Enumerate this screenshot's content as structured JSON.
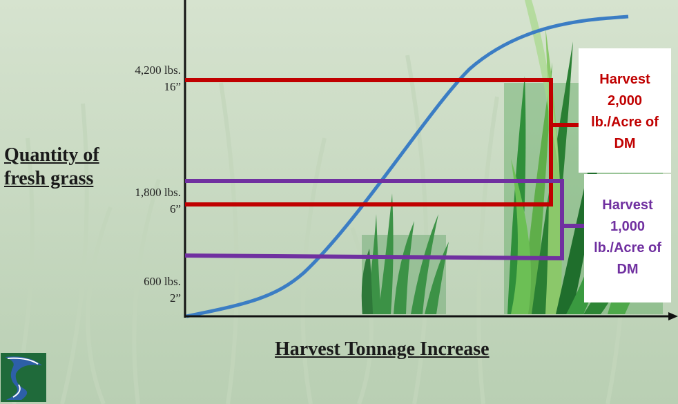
{
  "y_axis_label_lines": [
    "Quantity of",
    "fresh grass"
  ],
  "x_axis_label": "Harvest Tonnage Increase",
  "y_ticks": [
    {
      "amount": "4,200 lbs.",
      "height": "16”"
    },
    {
      "amount": "1,800 lbs.",
      "height": "6”"
    },
    {
      "amount": "600 lbs.",
      "height": "2”"
    }
  ],
  "callouts": [
    {
      "lines": [
        "Harvest",
        "2,000",
        "lb./Acre of",
        "DM"
      ],
      "color": "#c00000"
    },
    {
      "lines": [
        "Harvest",
        "1,000",
        "lb./Acre of",
        "DM"
      ],
      "color": "#7030a0"
    }
  ],
  "colors": {
    "curve": "#3b7dc4",
    "red": "#c00000",
    "purple": "#7030a0",
    "axis": "#111111"
  }
}
